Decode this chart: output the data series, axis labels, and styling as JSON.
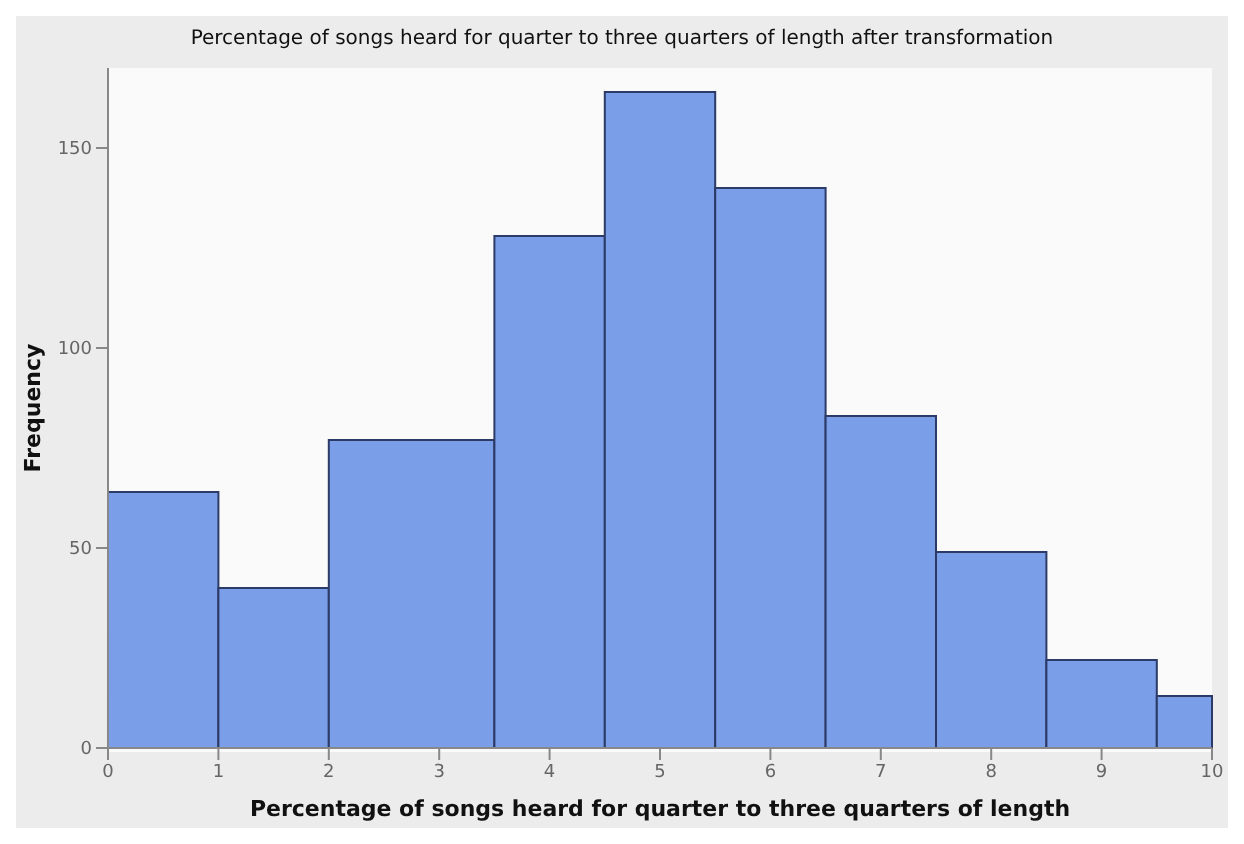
{
  "chart_data": {
    "type": "histogram",
    "title": "Percentage of songs heard for quarter to three quarters of length after transformation",
    "xlabel": "Percentage of songs heard for quarter to three quarters of length",
    "ylabel": "Frequency",
    "bins": [
      0,
      1,
      2,
      3.5,
      4.5,
      5.5,
      6.5,
      7.5,
      8.5,
      9.5,
      10
    ],
    "values": [
      64,
      40,
      77,
      128,
      164,
      140,
      83,
      49,
      22,
      13
    ],
    "color": "#7b9ee8",
    "xlim": [
      0,
      10
    ],
    "xticks": [
      0,
      1,
      2,
      3,
      4,
      5,
      6,
      7,
      8,
      9,
      10
    ],
    "ylim": [
      0,
      170
    ],
    "yticks": [
      0,
      50,
      100,
      150
    ]
  }
}
